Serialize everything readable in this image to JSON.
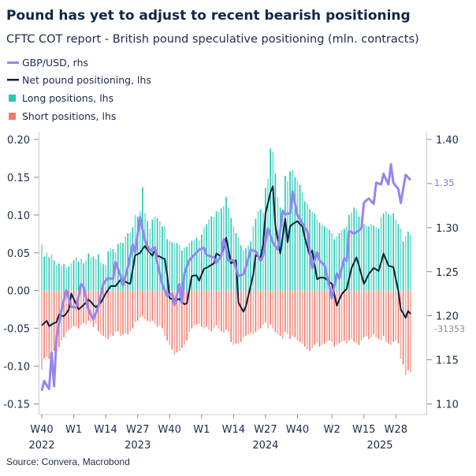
{
  "title": "Pound has yet to adjust to recent bearish positioning",
  "subtitle": "CFTC COT report - British pound speculative positioning (mln. contracts)",
  "source": "Source: Convera, Macrobond",
  "colors": {
    "gbpusd": "#9585f0",
    "net": "#0b1f3a",
    "long": "#1fc9b4",
    "short": "#ee7b6c",
    "axis": "#cccccc",
    "text": "#1a2b4a"
  },
  "chart_data": {
    "type": "bar+line",
    "frequency": "weekly",
    "start_week": "2022-W40",
    "legend": [
      {
        "label": "GBP/USD, rhs",
        "kind": "line",
        "color": "#9585f0"
      },
      {
        "label": "Net pound positioning, lhs",
        "kind": "line",
        "color": "#0b1f3a"
      },
      {
        "label": "Long positions, lhs",
        "kind": "bar",
        "color": "#1fc9b4"
      },
      {
        "label": "Short positions, lhs",
        "kind": "bar",
        "color": "#ee7b6c"
      }
    ],
    "legend_placement": "top-left",
    "left_axis": {
      "ylim": [
        -0.15,
        0.2
      ],
      "ticks": [
        "0.20",
        "0.15",
        "0.10",
        "0.05",
        "0.00",
        "-0.05",
        "-0.10",
        "-0.15"
      ]
    },
    "right_axis": {
      "ylim": [
        1.1,
        1.4
      ],
      "ticks": [
        "1.40",
        "1.35",
        "1.30",
        "1.25",
        "1.20",
        "1.15",
        "1.10"
      ]
    },
    "x_ticks": [
      {
        "label": "W40",
        "year": "2022"
      },
      {
        "label": "W1",
        "year": ""
      },
      {
        "label": "W14",
        "year": ""
      },
      {
        "label": "W27",
        "year": "2023"
      },
      {
        "label": "W40",
        "year": ""
      },
      {
        "label": "W1",
        "year": ""
      },
      {
        "label": "W14",
        "year": ""
      },
      {
        "label": "W27",
        "year": "2024"
      },
      {
        "label": "W40",
        "year": ""
      },
      {
        "label": "W2",
        "year": ""
      },
      {
        "label": "W15",
        "year": "2025"
      },
      {
        "label": "W28",
        "year": ""
      }
    ],
    "end_labels": {
      "gbpusd": "1.35",
      "net": "-31353"
    },
    "grid": false,
    "series": [
      {
        "name": "Long positions, lhs",
        "type": "bar",
        "axis": "left",
        "values": [
          0.061,
          0.045,
          0.05,
          0.044,
          0.048,
          0.04,
          0.034,
          0.036,
          0.033,
          0.035,
          0.03,
          0.032,
          0.036,
          0.04,
          0.044,
          0.038,
          0.042,
          0.036,
          0.04,
          0.049,
          0.044,
          0.045,
          0.042,
          0.048,
          0.037,
          0.035,
          0.034,
          0.052,
          0.056,
          0.055,
          0.051,
          0.062,
          0.064,
          0.063,
          0.072,
          0.076,
          0.077,
          0.084,
          0.1,
          0.098,
          0.105,
          0.137,
          0.103,
          0.092,
          0.082,
          0.094,
          0.098,
          0.096,
          0.092,
          0.085,
          0.085,
          0.068,
          0.066,
          0.064,
          0.062,
          0.063,
          0.06,
          0.053,
          0.057,
          0.058,
          0.063,
          0.066,
          0.067,
          0.07,
          0.066,
          0.074,
          0.084,
          0.088,
          0.094,
          0.098,
          0.097,
          0.105,
          0.104,
          0.109,
          0.112,
          0.124,
          0.11,
          0.096,
          0.085,
          0.076,
          0.07,
          0.06,
          0.054,
          0.056,
          0.06,
          0.065,
          0.085,
          0.095,
          0.105,
          0.108,
          0.103,
          0.136,
          0.148,
          0.188,
          0.184,
          0.155,
          0.124,
          0.11,
          0.108,
          0.152,
          0.145,
          0.158,
          0.16,
          0.15,
          0.145,
          0.14,
          0.13,
          0.118,
          0.115,
          0.108,
          0.104,
          0.102,
          0.094,
          0.09,
          0.087,
          0.085,
          0.083,
          0.08,
          0.076,
          0.068,
          0.072,
          0.076,
          0.08,
          0.082,
          0.085,
          0.1,
          0.103,
          0.11,
          0.107,
          0.098,
          0.098,
          0.088,
          0.086,
          0.085,
          0.088,
          0.086,
          0.084,
          0.082,
          0.098,
          0.102,
          0.105,
          0.101,
          0.1,
          0.102,
          0.094,
          0.088,
          0.082,
          0.065,
          0.072,
          0.078,
          0.073
        ]
      },
      {
        "name": "Short positions, lhs",
        "type": "bar",
        "axis": "left",
        "values": [
          -0.105,
          -0.09,
          -0.088,
          -0.09,
          -0.084,
          -0.08,
          -0.082,
          -0.075,
          -0.066,
          -0.062,
          -0.055,
          -0.052,
          -0.05,
          -0.047,
          -0.048,
          -0.05,
          -0.046,
          -0.043,
          -0.045,
          -0.04,
          -0.042,
          -0.048,
          -0.044,
          -0.054,
          -0.058,
          -0.06,
          -0.062,
          -0.064,
          -0.058,
          -0.06,
          -0.055,
          -0.054,
          -0.06,
          -0.058,
          -0.056,
          -0.058,
          -0.054,
          -0.05,
          -0.042,
          -0.04,
          -0.036,
          -0.034,
          -0.038,
          -0.04,
          -0.042,
          -0.04,
          -0.044,
          -0.048,
          -0.046,
          -0.05,
          -0.06,
          -0.066,
          -0.072,
          -0.078,
          -0.085,
          -0.082,
          -0.08,
          -0.076,
          -0.072,
          -0.066,
          -0.055,
          -0.05,
          -0.046,
          -0.045,
          -0.044,
          -0.048,
          -0.05,
          -0.048,
          -0.052,
          -0.054,
          -0.05,
          -0.046,
          -0.05,
          -0.054,
          -0.056,
          -0.052,
          -0.054,
          -0.068,
          -0.072,
          -0.07,
          -0.07,
          -0.068,
          -0.062,
          -0.06,
          -0.058,
          -0.056,
          -0.058,
          -0.055,
          -0.052,
          -0.05,
          -0.045,
          -0.042,
          -0.05,
          -0.045,
          -0.05,
          -0.055,
          -0.058,
          -0.06,
          -0.064,
          -0.055,
          -0.058,
          -0.064,
          -0.06,
          -0.062,
          -0.066,
          -0.068,
          -0.07,
          -0.074,
          -0.078,
          -0.08,
          -0.076,
          -0.072,
          -0.07,
          -0.074,
          -0.072,
          -0.07,
          -0.068,
          -0.066,
          -0.068,
          -0.074,
          -0.072,
          -0.07,
          -0.068,
          -0.066,
          -0.07,
          -0.066,
          -0.064,
          -0.068,
          -0.07,
          -0.072,
          -0.066,
          -0.062,
          -0.06,
          -0.064,
          -0.062,
          -0.058,
          -0.062,
          -0.064,
          -0.066,
          -0.06,
          -0.068,
          -0.07,
          -0.072,
          -0.068,
          -0.066,
          -0.07,
          -0.09,
          -0.098,
          -0.112,
          -0.106,
          -0.108
        ]
      },
      {
        "name": "Net pound positioning, lhs",
        "type": "line",
        "axis": "left",
        "values": [
          -0.046,
          -0.043,
          -0.04,
          -0.047,
          -0.045,
          -0.043,
          -0.042,
          -0.032,
          -0.033,
          -0.034,
          -0.03,
          -0.025,
          -0.004,
          -0.011,
          -0.018,
          -0.025,
          -0.022,
          -0.019,
          -0.016,
          -0.012,
          -0.015,
          -0.019,
          -0.022,
          -0.019,
          -0.016,
          -0.01,
          -0.004,
          0.001,
          0.006,
          0.006,
          0.006,
          0.01,
          0.014,
          0.013,
          0.012,
          0.01,
          0.009,
          0.028,
          0.047,
          0.048,
          0.05,
          0.055,
          0.059,
          0.054,
          0.05,
          0.046,
          0.054,
          0.046,
          0.045,
          0.043,
          0.042,
          0.021,
          -0.01,
          -0.011,
          -0.012,
          -0.012,
          -0.011,
          -0.015,
          -0.018,
          -0.017,
          0.001,
          0.019,
          0.02,
          0.02,
          0.013,
          0.021,
          0.029,
          0.03,
          0.032,
          0.034,
          0.036,
          0.049,
          0.047,
          0.046,
          0.058,
          0.07,
          0.053,
          0.036,
          0.038,
          0.04,
          -0.016,
          -0.022,
          -0.028,
          -0.021,
          -0.007,
          0.007,
          0.021,
          0.047,
          0.045,
          0.044,
          0.06,
          0.102,
          0.116,
          0.13,
          0.138,
          0.086,
          0.067,
          0.049,
          0.071,
          0.095,
          0.064,
          0.085,
          0.088,
          0.09,
          0.092,
          0.088,
          0.085,
          0.07,
          0.058,
          0.047,
          0.053,
          0.034,
          0.015,
          0.017,
          0.017,
          0.017,
          0.014,
          0.011,
          0.009,
          -0.005,
          -0.02,
          -0.012,
          -0.005,
          -0.001,
          0.002,
          0.016,
          0.03,
          0.037,
          0.044,
          0.033,
          0.021,
          0.009,
          0.015,
          0.022,
          0.026,
          0.03,
          0.028,
          0.026,
          0.037,
          0.049,
          0.041,
          0.033,
          0.032,
          0.031,
          0.015,
          0.0,
          -0.025,
          -0.03,
          -0.036,
          -0.027,
          -0.031
        ]
      },
      {
        "name": "GBP/USD, rhs",
        "type": "line",
        "axis": "right",
        "values": [
          1.115,
          1.126,
          1.121,
          1.117,
          1.158,
          1.12,
          1.176,
          1.191,
          1.206,
          1.218,
          1.229,
          1.22,
          1.21,
          1.21,
          1.209,
          1.222,
          1.236,
          1.233,
          1.22,
          1.207,
          1.201,
          1.196,
          1.203,
          1.21,
          1.223,
          1.236,
          1.24,
          1.243,
          1.242,
          1.242,
          1.261,
          1.253,
          1.246,
          1.234,
          1.245,
          1.255,
          1.268,
          1.281,
          1.272,
          1.292,
          1.312,
          1.298,
          1.285,
          1.279,
          1.273,
          1.276,
          1.278,
          1.26,
          1.248,
          1.236,
          1.229,
          1.222,
          1.224,
          1.225,
          1.212,
          1.224,
          1.236,
          1.214,
          1.248,
          1.256,
          1.263,
          1.266,
          1.269,
          1.272,
          1.275,
          1.276,
          1.277,
          1.269,
          1.268,
          1.267,
          1.266,
          1.26,
          1.264,
          1.268,
          1.287,
          1.274,
          1.262,
          1.263,
          1.263,
          1.254,
          1.245,
          1.246,
          1.247,
          1.255,
          1.265,
          1.275,
          1.274,
          1.273,
          1.268,
          1.262,
          1.268,
          1.284,
          1.299,
          1.291,
          1.283,
          1.279,
          1.275,
          1.297,
          1.319,
          1.315,
          1.316,
          1.316,
          1.341,
          1.327,
          1.314,
          1.31,
          1.305,
          1.3,
          1.296,
          1.275,
          1.254,
          1.263,
          1.272,
          1.263,
          1.26,
          1.257,
          1.245,
          1.233,
          1.22,
          1.234,
          1.248,
          1.242,
          1.254,
          1.265,
          1.262,
          1.296,
          1.295,
          1.293,
          1.295,
          1.297,
          1.299,
          1.328,
          1.331,
          1.333,
          1.33,
          1.327,
          1.351,
          1.35,
          1.349,
          1.361,
          1.355,
          1.349,
          1.372,
          1.351,
          1.347,
          1.344,
          1.328,
          1.344,
          1.36,
          1.357,
          1.354
        ]
      }
    ]
  }
}
